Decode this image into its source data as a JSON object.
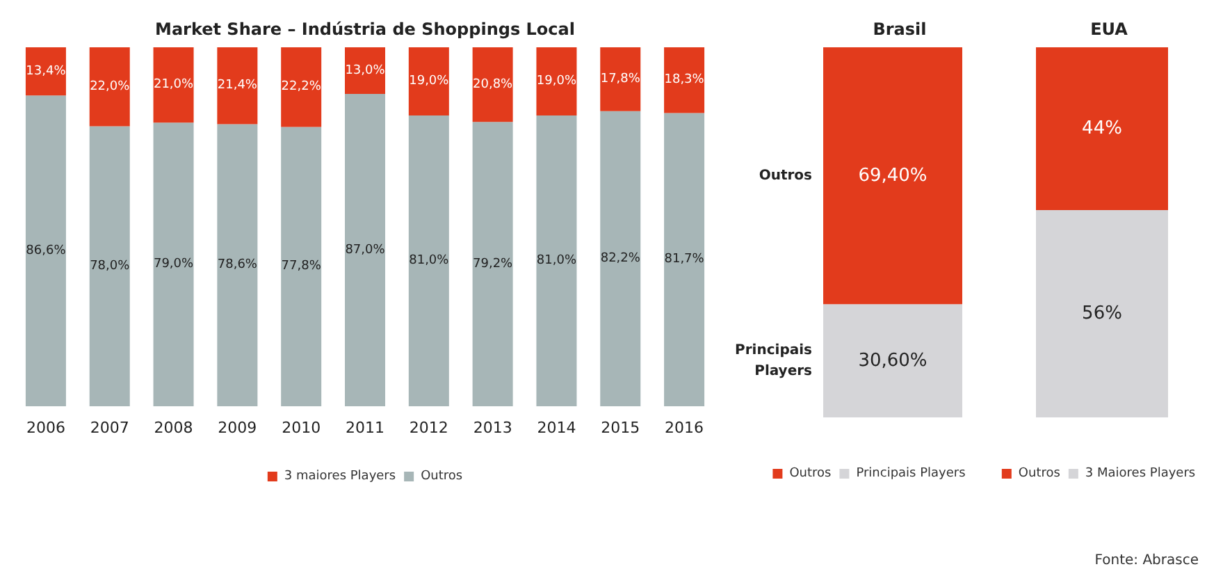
{
  "chart_data": [
    {
      "type": "bar",
      "title": "Market Share – Indústria de Shoppings Local",
      "stacked": true,
      "tick_labels": "x",
      "legend": "bottom",
      "categories": [
        "2006",
        "2007",
        "2008",
        "2009",
        "2010",
        "2011",
        "2012",
        "2013",
        "2014",
        "2015",
        "2016"
      ],
      "series": [
        {
          "name": "Outros",
          "color": "#a7b6b7",
          "values": [
            86.6,
            78.0,
            79.0,
            78.6,
            77.8,
            87.0,
            81.0,
            79.2,
            81.0,
            82.2,
            81.7
          ],
          "value_labels": [
            "86,6%",
            "78,0%",
            "79,0%",
            "78,6%",
            "77,8%",
            "87,0%",
            "81,0%",
            "79,2%",
            "81,0%",
            "82,2%",
            "81,7%"
          ]
        },
        {
          "name": "3 maiores Players",
          "color": "#e23b1c",
          "values": [
            13.4,
            22.0,
            21.0,
            21.4,
            22.2,
            13.0,
            19.0,
            20.8,
            19.0,
            17.8,
            18.3
          ],
          "value_labels": [
            "13,4%",
            "22,0%",
            "21,0%",
            "21,4%",
            "22,2%",
            "13,0%",
            "19,0%",
            "20,8%",
            "19,0%",
            "17,8%",
            "18,3%"
          ]
        }
      ]
    },
    {
      "type": "bar",
      "title": "Brasil",
      "stacked": true,
      "tick_labels": false,
      "legend": "bottom",
      "categories": [
        null
      ],
      "series": [
        {
          "name": "Principais Players",
          "color": "#d5d5d8",
          "values": [
            30.6
          ],
          "value_labels": [
            "30,60%"
          ]
        },
        {
          "name": "Outros",
          "color": "#e23b1c",
          "values": [
            69.4
          ],
          "value_labels": [
            "69,40%"
          ]
        }
      ],
      "annotations": [
        "Outros",
        "Principais Players"
      ]
    },
    {
      "type": "bar",
      "title": "EUA",
      "stacked": true,
      "tick_labels": false,
      "legend": "bottom",
      "categories": [
        null
      ],
      "series": [
        {
          "name": "3 Maiores Players",
          "color": "#d5d5d8",
          "values": [
            56
          ],
          "value_labels": [
            "56%"
          ]
        },
        {
          "name": "Outros",
          "color": "#e23b1c",
          "values": [
            44
          ],
          "value_labels": [
            "44%"
          ]
        }
      ],
      "annotations": [
        "Fonte: Abrasce"
      ]
    }
  ]
}
